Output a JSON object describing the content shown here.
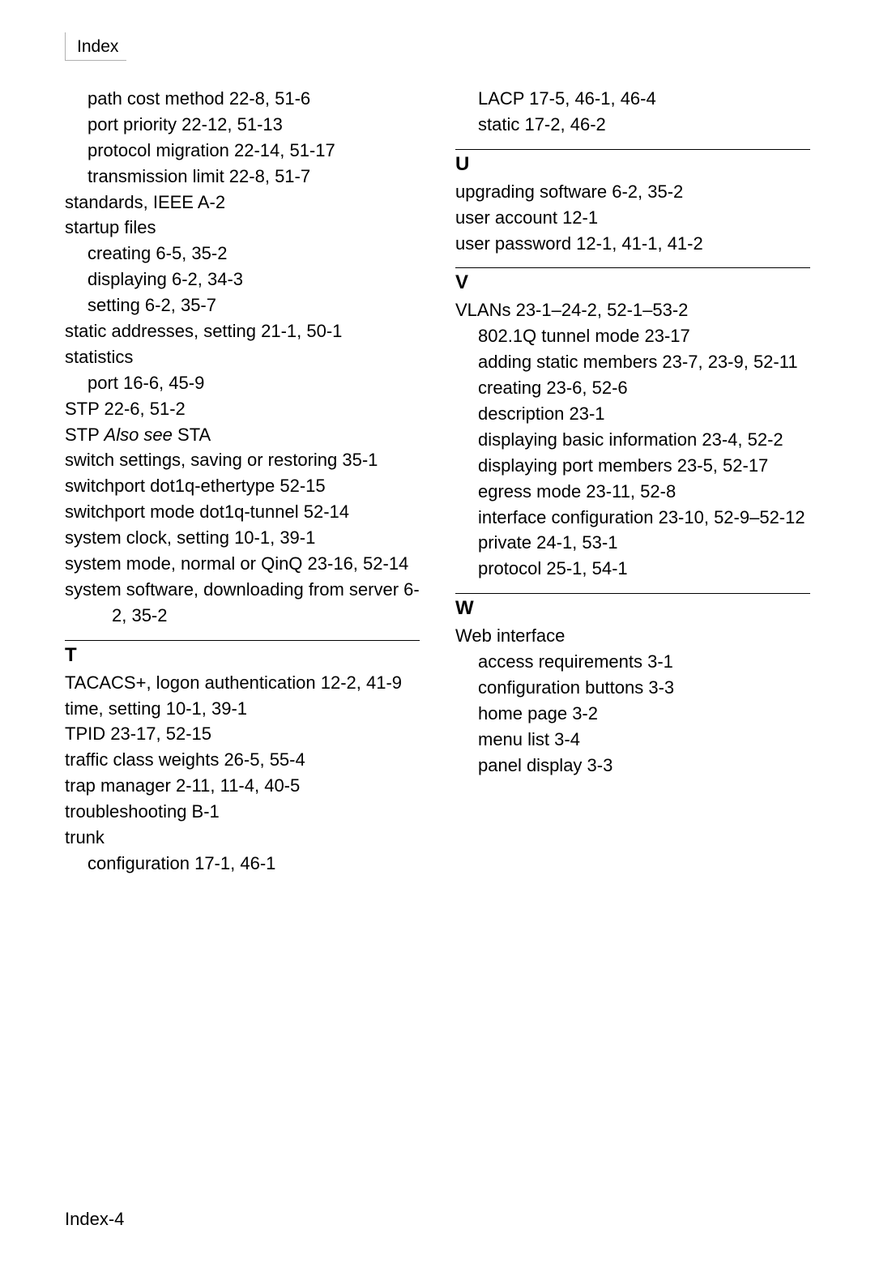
{
  "header": {
    "title": "Index"
  },
  "footer": {
    "label": "Index-4"
  },
  "colors": {
    "text": "#000000",
    "background": "#ffffff",
    "tab_border": "#b0b0b0",
    "divider": "#000000"
  },
  "typography": {
    "body_font": "Arial",
    "body_size_pt": 16,
    "heading_weight": "bold"
  },
  "leftColumn": {
    "preEntries": [
      {
        "level": 1,
        "text": "path cost method  22-8, 51-6"
      },
      {
        "level": 1,
        "text": "port priority  22-12, 51-13"
      },
      {
        "level": 1,
        "text": "protocol migration  22-14, 51-17"
      },
      {
        "level": 1,
        "text": "transmission limit  22-8, 51-7"
      },
      {
        "level": 0,
        "text": "standards, IEEE  A-2"
      },
      {
        "level": 0,
        "text": "startup files"
      },
      {
        "level": 1,
        "text": "creating  6-5, 35-2"
      },
      {
        "level": 1,
        "text": "displaying  6-2, 34-3"
      },
      {
        "level": 1,
        "text": "setting  6-2, 35-7"
      },
      {
        "level": 0,
        "text": "static addresses, setting  21-1, 50-1"
      },
      {
        "level": 0,
        "text": "statistics"
      },
      {
        "level": 1,
        "text": "port  16-6, 45-9"
      },
      {
        "level": 0,
        "text": "STP  22-6, 51-2"
      },
      {
        "level": 0,
        "parts": [
          {
            "text": "STP  "
          },
          {
            "text": "Also see",
            "italic": true
          },
          {
            "text": "  STA"
          }
        ]
      },
      {
        "level": 0,
        "text": "switch settings, saving or restoring  35-1"
      },
      {
        "level": 0,
        "text": "switchport dot1q-ethertype  52-15"
      },
      {
        "level": 0,
        "text": "switchport mode dot1q-tunnel  52-14"
      },
      {
        "level": 0,
        "text": "system clock, setting  10-1, 39-1"
      },
      {
        "level": 0,
        "text": "system mode, normal or QinQ  23-16, 52-14"
      },
      {
        "level": 0,
        "text": "system software, downloading from server  6-2, 35-2"
      }
    ],
    "sections": [
      {
        "letter": "T",
        "entries": [
          {
            "level": 0,
            "text": "TACACS+, logon authentication  12-2, 41-9"
          },
          {
            "level": 0,
            "text": "time, setting  10-1, 39-1"
          },
          {
            "level": 0,
            "text": "TPID  23-17, 52-15"
          },
          {
            "level": 0,
            "text": "traffic class weights  26-5, 55-4"
          },
          {
            "level": 0,
            "text": "trap manager  2-11, 11-4, 40-5"
          },
          {
            "level": 0,
            "text": "troubleshooting  B-1"
          },
          {
            "level": 0,
            "text": "trunk"
          },
          {
            "level": 1,
            "text": "configuration  17-1, 46-1"
          }
        ]
      }
    ]
  },
  "rightColumn": {
    "preEntries": [
      {
        "level": 1,
        "text": "LACP  17-5, 46-1, 46-4"
      },
      {
        "level": 1,
        "text": "static  17-2, 46-2"
      }
    ],
    "sections": [
      {
        "letter": "U",
        "entries": [
          {
            "level": 0,
            "text": "upgrading software  6-2, 35-2"
          },
          {
            "level": 0,
            "text": "user account  12-1"
          },
          {
            "level": 0,
            "text": "user password  12-1, 41-1, 41-2"
          }
        ]
      },
      {
        "letter": "V",
        "entries": [
          {
            "level": 0,
            "text": "VLANs  23-1–24-2, 52-1–53-2"
          },
          {
            "level": 1,
            "text": "802.1Q tunnel mode  23-17"
          },
          {
            "level": 1,
            "text": "adding static members  23-7, 23-9, 52-11"
          },
          {
            "level": 1,
            "text": "creating  23-6, 52-6"
          },
          {
            "level": 1,
            "text": "description  23-1"
          },
          {
            "level": 1,
            "text": "displaying basic information  23-4, 52-2"
          },
          {
            "level": 1,
            "text": "displaying port members  23-5, 52-17"
          },
          {
            "level": 1,
            "text": "egress mode  23-11, 52-8"
          },
          {
            "level": 1,
            "text": "interface configuration  23-10, 52-9–52-12"
          },
          {
            "level": 1,
            "text": "private  24-1, 53-1"
          },
          {
            "level": 1,
            "text": "protocol  25-1, 54-1"
          }
        ]
      },
      {
        "letter": "W",
        "entries": [
          {
            "level": 0,
            "text": "Web interface"
          },
          {
            "level": 1,
            "text": "access requirements  3-1"
          },
          {
            "level": 1,
            "text": "configuration buttons  3-3"
          },
          {
            "level": 1,
            "text": "home page  3-2"
          },
          {
            "level": 1,
            "text": "menu list  3-4"
          },
          {
            "level": 1,
            "text": "panel display  3-3"
          }
        ]
      }
    ]
  }
}
